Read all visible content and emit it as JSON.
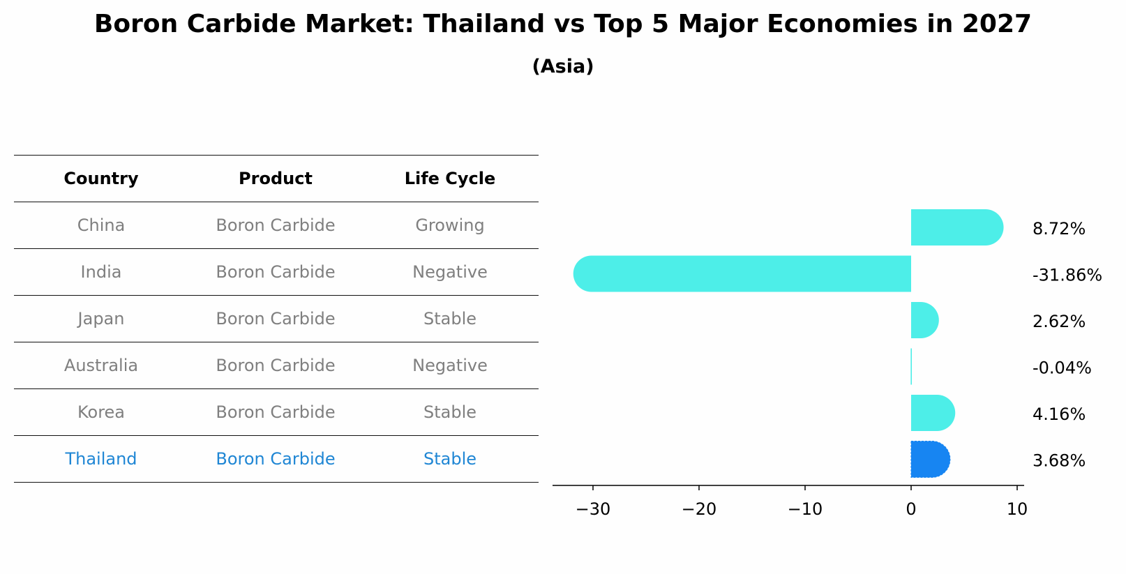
{
  "title": "Boron Carbide Market: Thailand vs Top 5 Major Economies in 2027",
  "subtitle": "(Asia)",
  "colors": {
    "bar": "#4deee8",
    "highlight_bar": "#1785f2",
    "highlight_text": "#1f86d4",
    "muted_text": "#7f7f7f"
  },
  "table": {
    "headers": [
      "Country",
      "Product",
      "Life Cycle"
    ],
    "rows": [
      [
        "China",
        "Boron Carbide",
        "Growing"
      ],
      [
        "India",
        "Boron Carbide",
        "Negative"
      ],
      [
        "Japan",
        "Boron Carbide",
        "Stable"
      ],
      [
        "Australia",
        "Boron Carbide",
        "Negative"
      ],
      [
        "Korea",
        "Boron Carbide",
        "Stable"
      ],
      [
        "Thailand",
        "Boron Carbide",
        "Stable"
      ]
    ],
    "highlight_row": 5
  },
  "chart_data": {
    "type": "bar",
    "orientation": "horizontal",
    "categories": [
      "China",
      "India",
      "Japan",
      "Australia",
      "Korea",
      "Thailand"
    ],
    "values": [
      8.72,
      -31.86,
      2.62,
      -0.04,
      4.16,
      3.68
    ],
    "value_labels": [
      "8.72%",
      "-31.86%",
      "2.62%",
      "-0.04%",
      "4.16%",
      "3.68%"
    ],
    "highlight_index": 5,
    "xlim": [
      -34,
      10.5
    ],
    "xticks": [
      -30,
      -20,
      -10,
      0,
      10
    ],
    "xtick_labels": [
      "−30",
      "−20",
      "−10",
      "0",
      "10"
    ],
    "xlabel": "",
    "ylabel": "",
    "grid": false
  }
}
